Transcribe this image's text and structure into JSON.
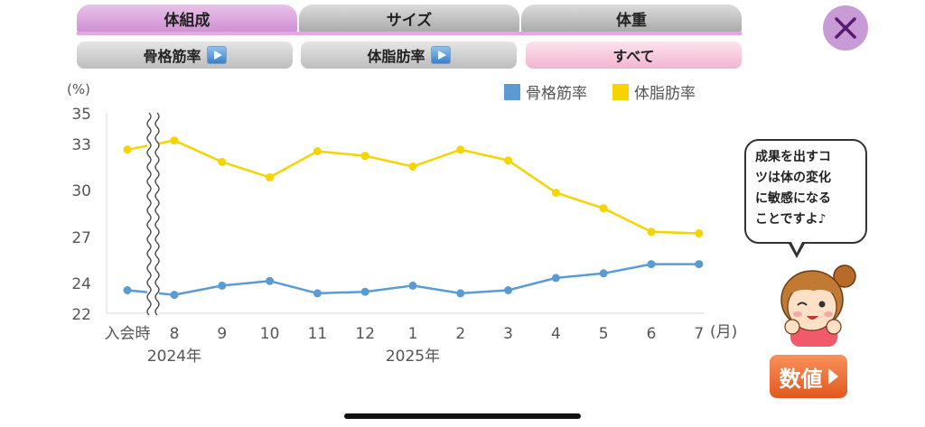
{
  "tabs": [
    {
      "label": "体組成",
      "active": true
    },
    {
      "label": "サイズ",
      "active": false
    },
    {
      "label": "体重",
      "active": false
    }
  ],
  "subtabs": [
    {
      "label": "骨格筋率",
      "icon": "play-icon",
      "active": false
    },
    {
      "label": "体脂肪率",
      "icon": "play-icon",
      "active": false
    },
    {
      "label": "すべて",
      "active": true
    }
  ],
  "close_icon": "close-icon",
  "colors": {
    "skeletal": "#5b9bd5",
    "bodyfat": "#f5d400",
    "accent": "#cf8fd3"
  },
  "chart_data": {
    "type": "line",
    "y_unit": "(%)",
    "x_unit": "(月)",
    "categories": [
      "入会時",
      "8",
      "9",
      "10",
      "11",
      "12",
      "1",
      "2",
      "3",
      "4",
      "5",
      "6",
      "7"
    ],
    "year_labels": [
      {
        "label": "2024年",
        "category": "8"
      },
      {
        "label": "2025年",
        "category": "1"
      }
    ],
    "yticks": [
      "22",
      "24",
      "27",
      "30",
      "33",
      "35"
    ],
    "axis_break_after": "入会時",
    "series": [
      {
        "name": "骨格筋率",
        "color": "#5b9bd5",
        "values": [
          23.5,
          23.2,
          23.8,
          24.1,
          23.3,
          23.4,
          23.8,
          23.3,
          23.5,
          24.3,
          24.6,
          25.2,
          25.2
        ]
      },
      {
        "name": "体脂肪率",
        "color": "#f5d400",
        "values": [
          32.6,
          33.2,
          31.8,
          30.8,
          32.5,
          32.2,
          31.5,
          32.6,
          31.9,
          29.8,
          28.8,
          27.3,
          27.2
        ]
      }
    ],
    "legend_position": "top-right"
  },
  "bubble": {
    "lines": [
      "成果を出すコ",
      "ツは体の変化",
      "に敏感になる",
      "ことですよ♪"
    ]
  },
  "values_button": {
    "label": "数値"
  }
}
